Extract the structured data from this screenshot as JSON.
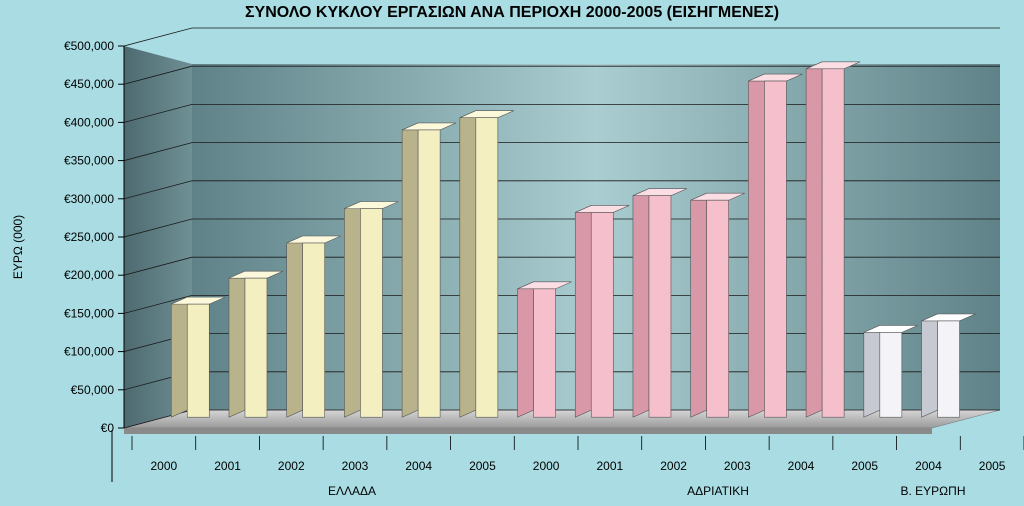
{
  "chart_data": {
    "type": "bar",
    "title": "ΣΥΝΟΛΟ ΚΥΚΛΟΥ ΕΡΓΑΣΙΩΝ ΑΝΑ ΠΕΡΙΟΧΗ 2000-2005 (ΕΙΣΗΓΜΕΝΕΣ)",
    "ylabel": "ΕΥΡΩ (000)",
    "xlabel": "",
    "ylim": [
      0,
      500000
    ],
    "yticks": [
      "€0",
      "€50,000",
      "€100,000",
      "€150,000",
      "€200,000",
      "€250,000",
      "€300,000",
      "€350,000",
      "€400,000",
      "€450,000",
      "€500,000"
    ],
    "grid": true,
    "categories": [
      "2000",
      "2001",
      "2002",
      "2003",
      "2004",
      "2005",
      "2000",
      "2001",
      "2002",
      "2003",
      "2004",
      "2005",
      "2004",
      "2005"
    ],
    "groups": [
      {
        "name": "ΕΛΛΑΔΑ",
        "color": "#f3efc0",
        "side": "#b8b38a",
        "top": "#fbf8dc",
        "values": [
          148000,
          182000,
          228000,
          273000,
          376000,
          392000
        ]
      },
      {
        "name": "ΑΔΡΙΑΤΙΚΗ",
        "color": "#f5bfcb",
        "side": "#d998a8",
        "top": "#fbdde4",
        "values": [
          168000,
          268000,
          290000,
          284000,
          440000,
          456000
        ]
      },
      {
        "name": "Β. ΕΥΡΩΠΗ",
        "color": "#f4f4f8",
        "side": "#c6c8d2",
        "top": "#ffffff",
        "values": [
          111000,
          126000
        ]
      }
    ]
  }
}
